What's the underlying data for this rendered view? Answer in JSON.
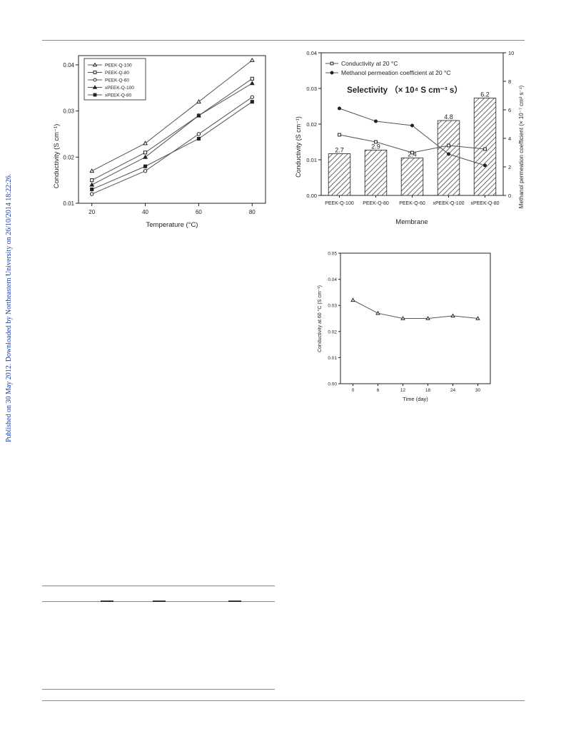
{
  "sidebar_note": "Published on 30 May 2012. Downloaded by Northeastern University on 26/10/2014 18:22:26.",
  "chart_data": [
    {
      "type": "line",
      "xlabel": "Temperature (°C)",
      "ylabel": "Conductivity (S cm⁻¹)",
      "xlim": [
        15,
        85
      ],
      "ylim": [
        0.01,
        0.042
      ],
      "x_ticks": [
        20,
        40,
        60,
        80
      ],
      "y_ticks": [
        0.01,
        0.02,
        0.03,
        0.04
      ],
      "y_tick_labels": [
        "0.01",
        "0.02",
        "0.03",
        "0.04"
      ],
      "legend_position": "top-left",
      "x": [
        20,
        40,
        60,
        80
      ],
      "series": [
        {
          "name": "PEEK-Q-100",
          "marker": "triangle-open",
          "values": [
            0.017,
            0.023,
            0.032,
            0.041
          ]
        },
        {
          "name": "PEEK-Q-80",
          "marker": "square-open",
          "values": [
            0.015,
            0.021,
            0.029,
            0.037
          ]
        },
        {
          "name": "PEEK-Q-60",
          "marker": "circle-open",
          "values": [
            0.012,
            0.017,
            0.025,
            0.033
          ]
        },
        {
          "name": "xPEEK-Q-100",
          "marker": "triangle-filled",
          "values": [
            0.014,
            0.02,
            0.029,
            0.036
          ]
        },
        {
          "name": "xPEEK-Q-80",
          "marker": "square-filled",
          "values": [
            0.013,
            0.018,
            0.024,
            0.032
          ]
        }
      ]
    },
    {
      "type": "bar",
      "title": "Selectivity （× 10⁴ S cm⁻³ s）",
      "xlabel": "Membrane",
      "ylabel": "Conductivity  (S cm⁻¹)",
      "y2label": "Methanol permeation coefficient (× 10⁻⁷ cm² s⁻¹)",
      "categories": [
        "PEEK-Q-100",
        "PEEK-Q-80",
        "PEEK-Q-60",
        "xPEEK-Q-100",
        "xPEEK-Q-80"
      ],
      "ylim": [
        0,
        0.04
      ],
      "y_ticks": [
        0.0,
        0.01,
        0.02,
        0.03,
        0.04
      ],
      "y_tick_labels": [
        "0.00",
        "0.01",
        "0.02",
        "0.03",
        "0.04"
      ],
      "y2lim": [
        0,
        10
      ],
      "y2_ticks": [
        0,
        2,
        4,
        6,
        8,
        10
      ],
      "y2_tick_labels": [
        "0",
        "2",
        "4",
        "6",
        "8",
        "10"
      ],
      "legend_position": "top-left",
      "bars": {
        "name": "Selectivity",
        "values": [
          2.7,
          2.9,
          2.4,
          4.8,
          6.2
        ],
        "labels": [
          "2.7",
          "2.9",
          "2.4",
          "4.8",
          "6.2"
        ],
        "bar_fill_colors": [
          0.0117,
          0.0127,
          0.0105,
          0.021,
          0.0273
        ]
      },
      "series": [
        {
          "name": "Conductivity at 20 °C",
          "marker": "square-open",
          "axis": "left",
          "values": [
            0.017,
            0.015,
            0.012,
            0.014,
            0.013
          ]
        },
        {
          "name": "Methanol permeation coefficient at 20 °C",
          "marker": "circle-filled",
          "axis": "right",
          "values": [
            6.1,
            5.2,
            4.9,
            2.9,
            2.1
          ]
        }
      ]
    },
    {
      "type": "line",
      "xlabel": "Time (day)",
      "ylabel": "Conductivity at 60 °C (S cm⁻¹)",
      "xlim": [
        -3,
        33
      ],
      "ylim": [
        0,
        0.05
      ],
      "x_ticks": [
        0,
        6,
        12,
        18,
        24,
        30
      ],
      "y_ticks": [
        0.0,
        0.01,
        0.02,
        0.03,
        0.04,
        0.05
      ],
      "y_tick_labels": [
        "0.00",
        "0.01",
        "0.02",
        "0.03",
        "0.04",
        "0.05"
      ],
      "x": [
        0,
        6,
        12,
        18,
        24,
        30
      ],
      "series": [
        {
          "marker": "triangle-open",
          "values": [
            0.032,
            0.027,
            0.025,
            0.025,
            0.026,
            0.025
          ]
        }
      ]
    }
  ]
}
